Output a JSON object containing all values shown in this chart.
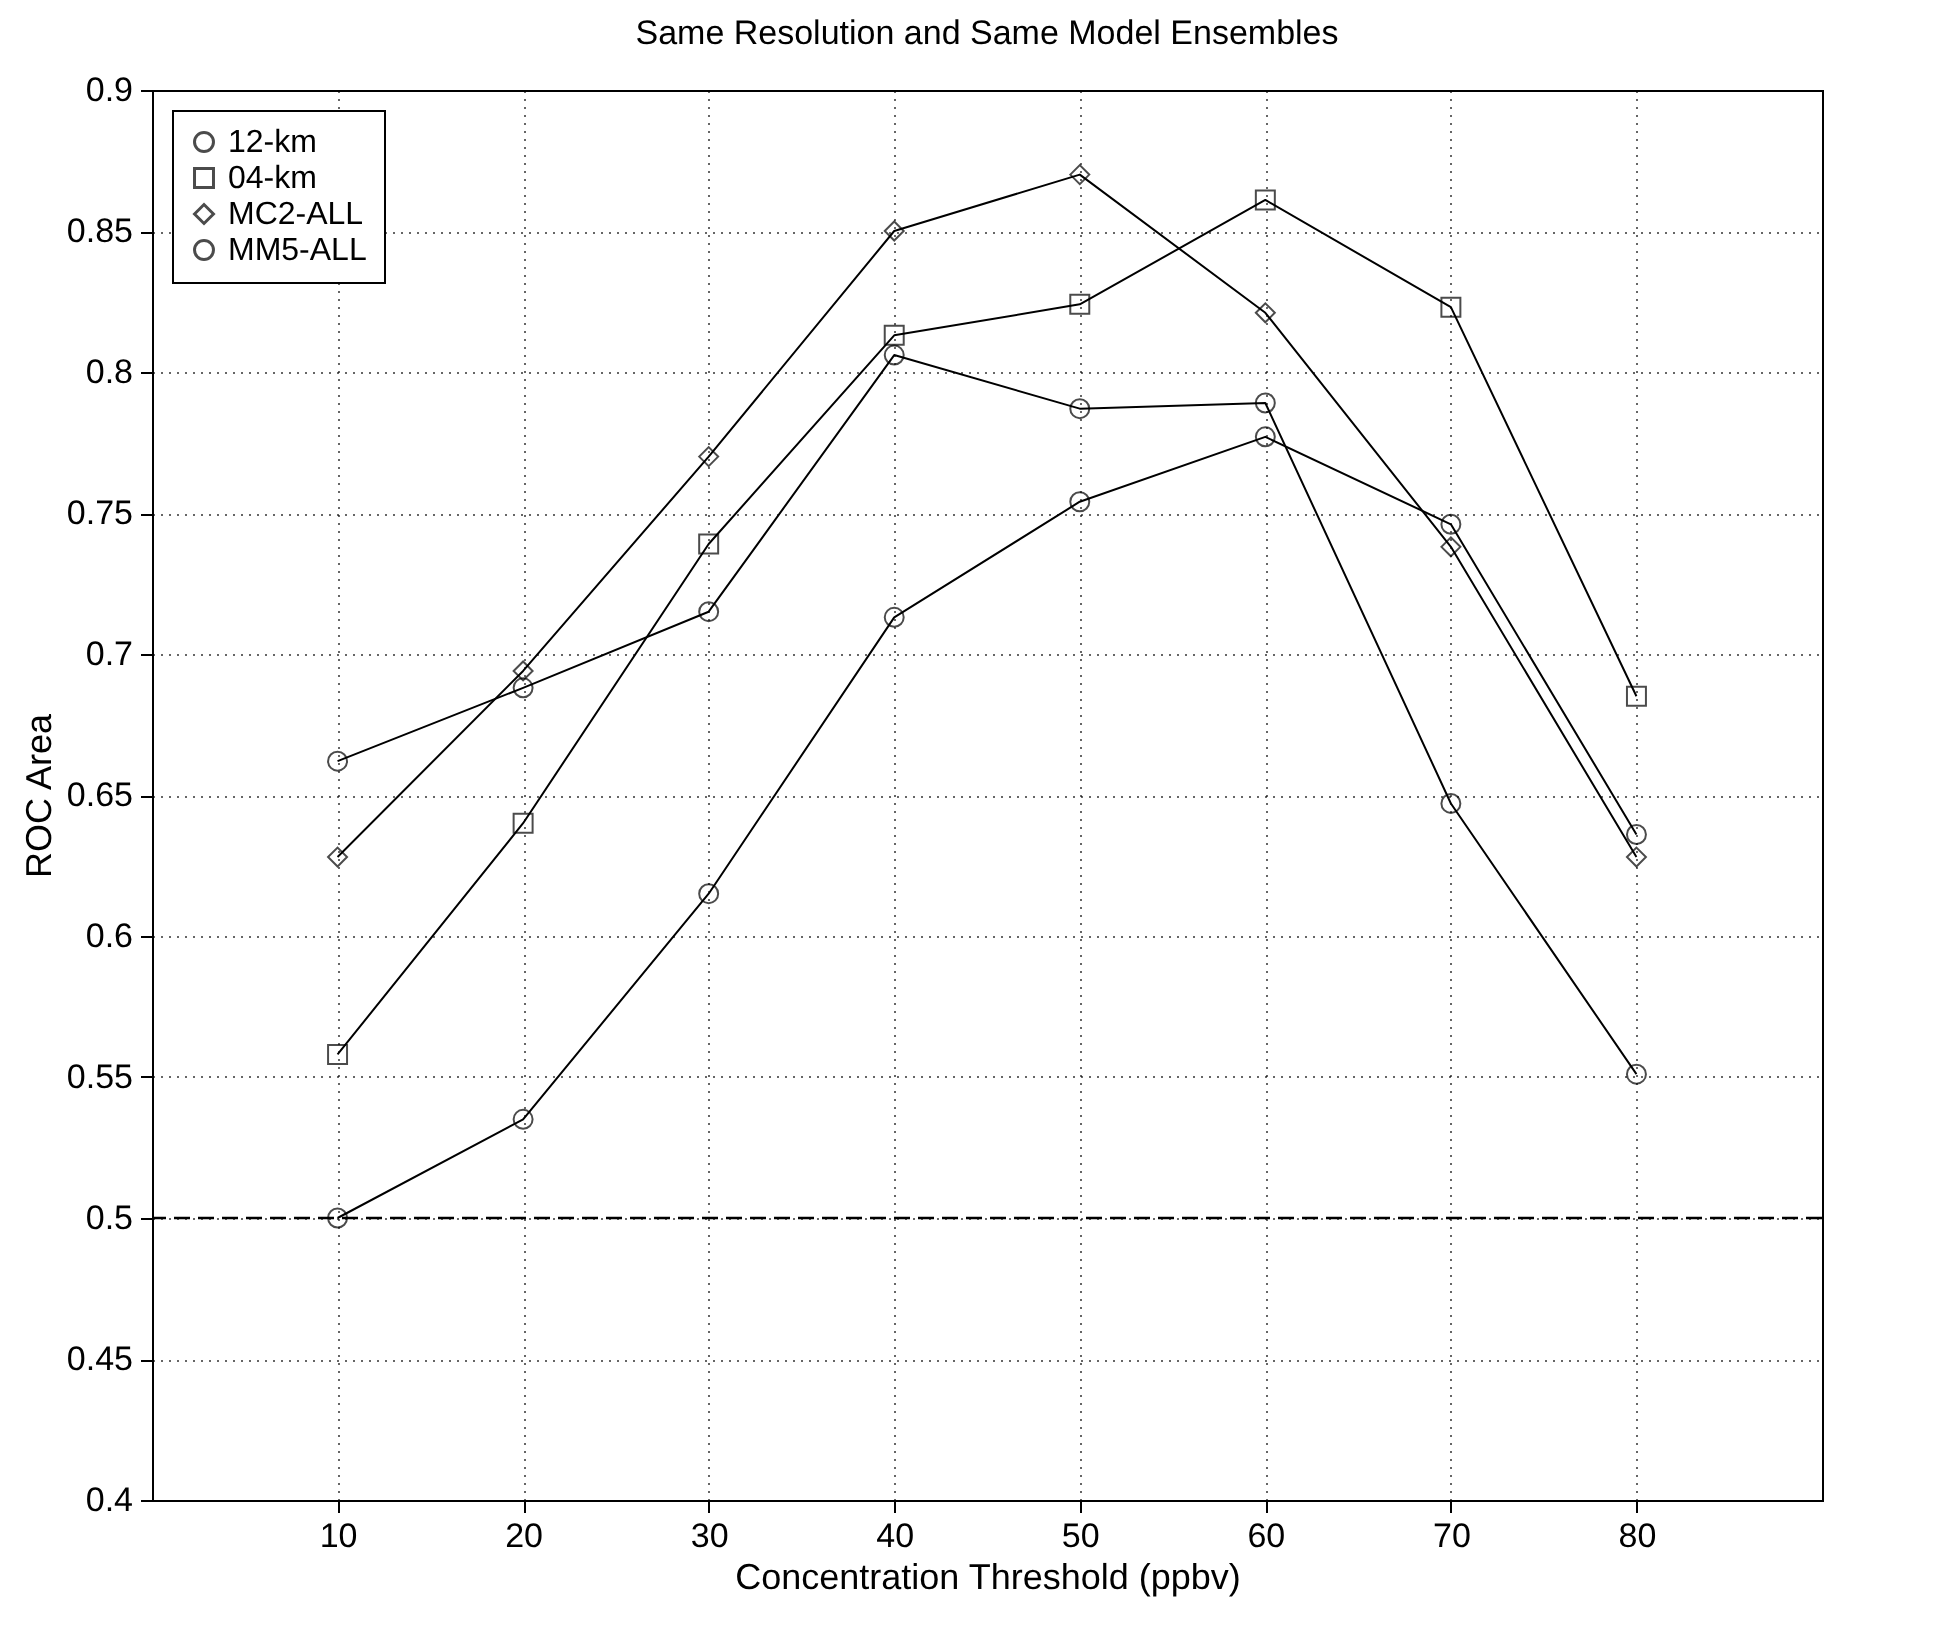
{
  "chart_data": {
    "type": "line",
    "title": "Same Resolution and Same Model Ensembles",
    "xlabel": "Concentration Threshold (ppbv)",
    "ylabel": "ROC Area",
    "x": [
      10,
      20,
      30,
      40,
      50,
      60,
      70,
      80
    ],
    "series": [
      {
        "name": "12-km",
        "color": "#000000",
        "marker": "circle",
        "values": [
          0.662,
          0.688,
          0.715,
          0.806,
          0.787,
          0.789,
          0.647,
          0.551
        ]
      },
      {
        "name": "04-km",
        "color": "#000000",
        "marker": "square",
        "values": [
          0.558,
          0.64,
          0.739,
          0.813,
          0.824,
          0.861,
          0.823,
          0.685
        ]
      },
      {
        "name": "MC2-ALL",
        "color": "#000000",
        "marker": "diamond",
        "values": [
          0.628,
          0.694,
          0.77,
          0.85,
          0.87,
          0.821,
          0.738,
          0.628
        ]
      },
      {
        "name": "MM5-ALL",
        "color": "#000000",
        "marker": "circle",
        "values": [
          0.5,
          0.535,
          0.615,
          0.713,
          0.754,
          0.777,
          0.746,
          0.636
        ]
      }
    ],
    "xlim": [
      0,
      90
    ],
    "xticks": [
      10,
      20,
      30,
      40,
      50,
      60,
      70,
      80
    ],
    "ylim": [
      0.4,
      0.9
    ],
    "yticks": [
      0.4,
      0.45,
      0.5,
      0.55,
      0.6,
      0.65,
      0.7,
      0.75,
      0.8,
      0.85,
      0.9
    ],
    "ref_lines": [
      {
        "axis": "y",
        "value": 0.5,
        "line_style": "dashed",
        "color": "#000000"
      }
    ],
    "grid": true,
    "legend": "top left",
    "line_style": "solid"
  }
}
